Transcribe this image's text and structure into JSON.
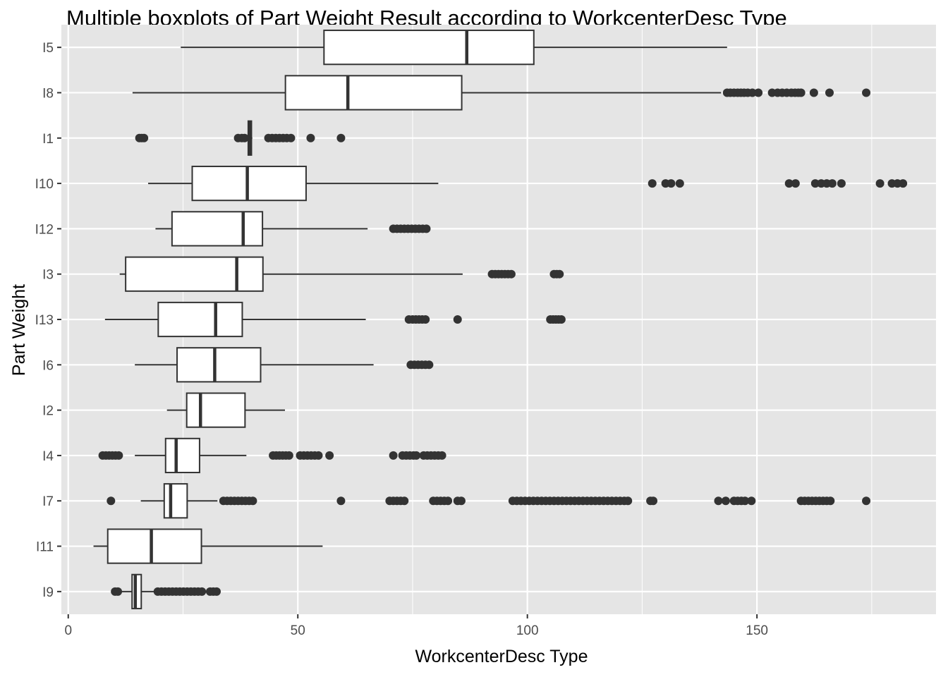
{
  "chart_data": {
    "type": "boxplot",
    "orientation": "horizontal",
    "title": "Multiple boxplots of Part Weight Result according to WorkcenterDesc Type",
    "xlabel": "WorkcenterDesc Type",
    "ylabel": "Part Weight",
    "xlim": [
      -1.5,
      189
    ],
    "x_ticks": [
      0,
      50,
      100,
      150
    ],
    "grid": true,
    "colors": {
      "panel": "#e5e5e5",
      "grid_major": "#ffffff",
      "box_fill": "#ffffff",
      "line": "#333333",
      "outlier": "#333333"
    },
    "categories": [
      "I5",
      "I8",
      "I1",
      "I10",
      "I12",
      "I3",
      "I13",
      "I6",
      "I2",
      "I4",
      "I7",
      "I11",
      "I9"
    ],
    "boxes": [
      {
        "label": "I5",
        "whisker_low": 24.5,
        "q1": 55.7,
        "median": 86.8,
        "q3": 101.4,
        "whisker_high": 143.5,
        "outliers": []
      },
      {
        "label": "I8",
        "whisker_low": 14,
        "q1": 47.3,
        "median": 60.9,
        "q3": 85.7,
        "whisker_high": 142.2,
        "outliers": [
          143.5,
          144.2,
          145,
          145.8,
          146.5,
          147.2,
          148,
          149,
          150.3,
          153.3,
          154.5,
          155.5,
          156.5,
          157.5,
          158.3,
          159,
          159.6,
          162.4,
          165.8,
          173.8
        ]
      },
      {
        "label": "I1",
        "whisker_low": 39.2,
        "q1": 39.2,
        "median": 39.5,
        "q3": 39.9,
        "whisker_high": 40.1,
        "outliers": [
          15.5,
          16,
          16.5,
          37,
          37.8,
          38.4,
          43.6,
          44.4,
          45.2,
          46,
          46.8,
          47.6,
          48.5,
          52.8,
          59.4
        ]
      },
      {
        "label": "I10",
        "whisker_low": 17.4,
        "q1": 27,
        "median": 39,
        "q3": 51.8,
        "whisker_high": 80.6,
        "outliers": [
          127.2,
          130.1,
          131.3,
          133.2,
          157,
          158.4,
          162.7,
          164,
          165.2,
          166.4,
          168.4,
          176.8,
          179.4,
          180.6,
          181.8
        ]
      },
      {
        "label": "I12",
        "whisker_low": 19,
        "q1": 22.6,
        "median": 38.1,
        "q3": 42.3,
        "whisker_high": 65.2,
        "outliers": [
          70.8,
          71.6,
          72.4,
          73.2,
          74,
          74.8,
          75.6,
          76.4,
          77.2,
          78
        ]
      },
      {
        "label": "I3",
        "whisker_low": 11.2,
        "q1": 12.5,
        "median": 36.7,
        "q3": 42.4,
        "whisker_high": 85.9,
        "outliers": [
          92.3,
          93,
          93.7,
          94.4,
          95.1,
          95.8,
          96.5,
          105.8,
          106.4,
          107
        ]
      },
      {
        "label": "I13",
        "whisker_low": 8,
        "q1": 19.6,
        "median": 32.1,
        "q3": 37.9,
        "whisker_high": 64.8,
        "outliers": [
          74.2,
          75,
          75.7,
          76.4,
          77.1,
          77.8,
          84.8,
          105,
          105.6,
          106.2,
          106.8,
          107.4
        ]
      },
      {
        "label": "I6",
        "whisker_low": 14.5,
        "q1": 23.7,
        "median": 31.9,
        "q3": 41.9,
        "whisker_high": 66.5,
        "outliers": [
          74.6,
          75.4,
          76.2,
          77,
          77.8,
          78.6
        ]
      },
      {
        "label": "I2",
        "whisker_low": 21.5,
        "q1": 25.8,
        "median": 28.8,
        "q3": 38.5,
        "whisker_high": 47.2,
        "outliers": []
      },
      {
        "label": "I4",
        "whisker_low": 14.5,
        "q1": 21.2,
        "median": 23.5,
        "q3": 28.6,
        "whisker_high": 38.8,
        "outliers": [
          7.5,
          8.2,
          8.9,
          9.6,
          10.3,
          11,
          44.6,
          45.3,
          46,
          46.7,
          47.4,
          48.1,
          50.5,
          51.3,
          52.1,
          52.9,
          53.7,
          54.5,
          56.9,
          70.8,
          72.8,
          73.6,
          74.4,
          75.2,
          75.8,
          77.4,
          78.2,
          79,
          79.8,
          80.6,
          81.4
        ]
      },
      {
        "label": "I7",
        "whisker_low": 15.8,
        "q1": 20.9,
        "median": 22.3,
        "q3": 25.9,
        "whisker_high": 32.5,
        "outliers": [
          9.3,
          33.8,
          34.6,
          35.4,
          36.2,
          37,
          37.8,
          38.6,
          39.4,
          40.2,
          59.4,
          70,
          70.8,
          71.6,
          72.4,
          73.2,
          79.5,
          80.3,
          81.1,
          81.9,
          82.7,
          84.8,
          85.6,
          96.8,
          97.7,
          98.6,
          99.5,
          100.4,
          101.3,
          102.2,
          103.1,
          104,
          104.9,
          105.8,
          106.7,
          107.6,
          108.5,
          109.4,
          110.3,
          111.2,
          112.1,
          113,
          113.9,
          114.8,
          115.7,
          116.6,
          117.5,
          118.4,
          119.3,
          120.2,
          121.1,
          121.9,
          126.8,
          127.4,
          141.6,
          143.2,
          145,
          145.8,
          146.6,
          147.4,
          148.8,
          159.6,
          160.4,
          161.2,
          162,
          162.8,
          163.6,
          164.4,
          165.2,
          166,
          173.8
        ]
      },
      {
        "label": "I11",
        "whisker_low": 5.5,
        "q1": 8.6,
        "median": 18.1,
        "q3": 29,
        "whisker_high": 55.4,
        "outliers": []
      },
      {
        "label": "I9",
        "whisker_low": 10.2,
        "q1": 13.9,
        "median": 14.6,
        "q3": 15.9,
        "whisker_high": 18.8,
        "outliers": [
          10.2,
          10.8,
          19.5,
          20.3,
          21.1,
          21.9,
          22.7,
          23.5,
          24.3,
          25.1,
          25.9,
          26.7,
          27.5,
          28.3,
          29.1,
          30.9,
          31.6,
          32.3
        ]
      }
    ]
  }
}
